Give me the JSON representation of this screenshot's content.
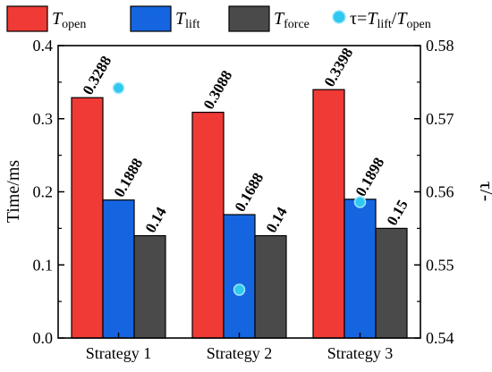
{
  "chart_data": {
    "type": "bar",
    "categories": [
      "Strategy 1",
      "Strategy 2",
      "Strategy 3"
    ],
    "series": [
      {
        "name_base": "T",
        "name_sub": "open",
        "values": [
          0.3288,
          0.3088,
          0.3398
        ],
        "value_labels": [
          "0.3288",
          "0.3088",
          "0.3398"
        ],
        "color": "#f03a35"
      },
      {
        "name_base": "T",
        "name_sub": "lift",
        "values": [
          0.1888,
          0.1688,
          0.1898
        ],
        "value_labels": [
          "0.1888",
          "0.1688",
          "0.1898"
        ],
        "color": "#1565e0"
      },
      {
        "name_base": "T",
        "name_sub": "force",
        "values": [
          0.14,
          0.14,
          0.15
        ],
        "value_labels": [
          "0.14",
          "0.14",
          "0.15"
        ],
        "color": "#4a4a4a"
      }
    ],
    "secondary_series": {
      "type": "scatter",
      "name_parts": {
        "tau": "τ=",
        "base1": "T",
        "sub1": "lift",
        "slash": "/",
        "base2": "T",
        "sub2": "open"
      },
      "values": [
        0.5742,
        0.5466,
        0.5586
      ],
      "color": "#2ec8f0"
    },
    "ylabel": "Time/ms",
    "ylim": [
      0.0,
      0.4
    ],
    "yticks": [
      "0.0",
      "0.1",
      "0.2",
      "0.3",
      "0.4"
    ],
    "y2label": "τ/-",
    "y2lim": [
      0.54,
      0.58
    ],
    "y2ticks": [
      "0.54",
      "0.55",
      "0.56",
      "0.57",
      "0.58"
    ],
    "legend": "top",
    "grid": false
  }
}
